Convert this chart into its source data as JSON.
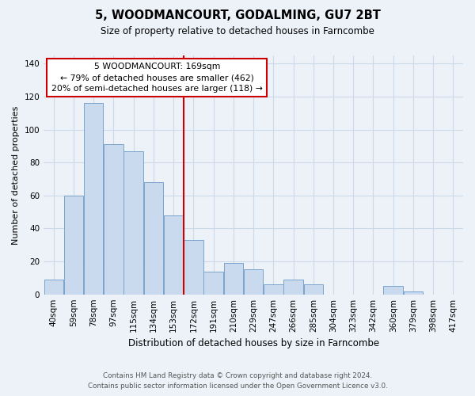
{
  "title": "5, WOODMANCOURT, GODALMING, GU7 2BT",
  "subtitle": "Size of property relative to detached houses in Farncombe",
  "xlabel": "Distribution of detached houses by size in Farncombe",
  "ylabel": "Number of detached properties",
  "footnote1": "Contains HM Land Registry data © Crown copyright and database right 2024.",
  "footnote2": "Contains public sector information licensed under the Open Government Licence v3.0.",
  "bins": [
    "40sqm",
    "59sqm",
    "78sqm",
    "97sqm",
    "115sqm",
    "134sqm",
    "153sqm",
    "172sqm",
    "191sqm",
    "210sqm",
    "229sqm",
    "247sqm",
    "266sqm",
    "285sqm",
    "304sqm",
    "323sqm",
    "342sqm",
    "360sqm",
    "379sqm",
    "398sqm",
    "417sqm"
  ],
  "values": [
    9,
    60,
    116,
    91,
    87,
    68,
    48,
    33,
    14,
    19,
    15,
    6,
    9,
    6,
    0,
    0,
    0,
    5,
    2,
    0,
    0
  ],
  "bar_color": "#c9d9ee",
  "bar_edge_color": "#7aa4cc",
  "vline_color": "#cc0000",
  "vline_bin_index": 7,
  "annotation_line1": "5 WOODMANCOURT: 169sqm",
  "annotation_line2": "← 79% of detached houses are smaller (462)",
  "annotation_line3": "20% of semi-detached houses are larger (118) →",
  "annotation_box_color": "#cc0000",
  "annotation_box_fill": "#ffffff",
  "ylim": [
    0,
    145
  ],
  "yticks": [
    0,
    20,
    40,
    60,
    80,
    100,
    120,
    140
  ],
  "grid_color": "#ccd9e8",
  "background_color": "#edf2f9"
}
